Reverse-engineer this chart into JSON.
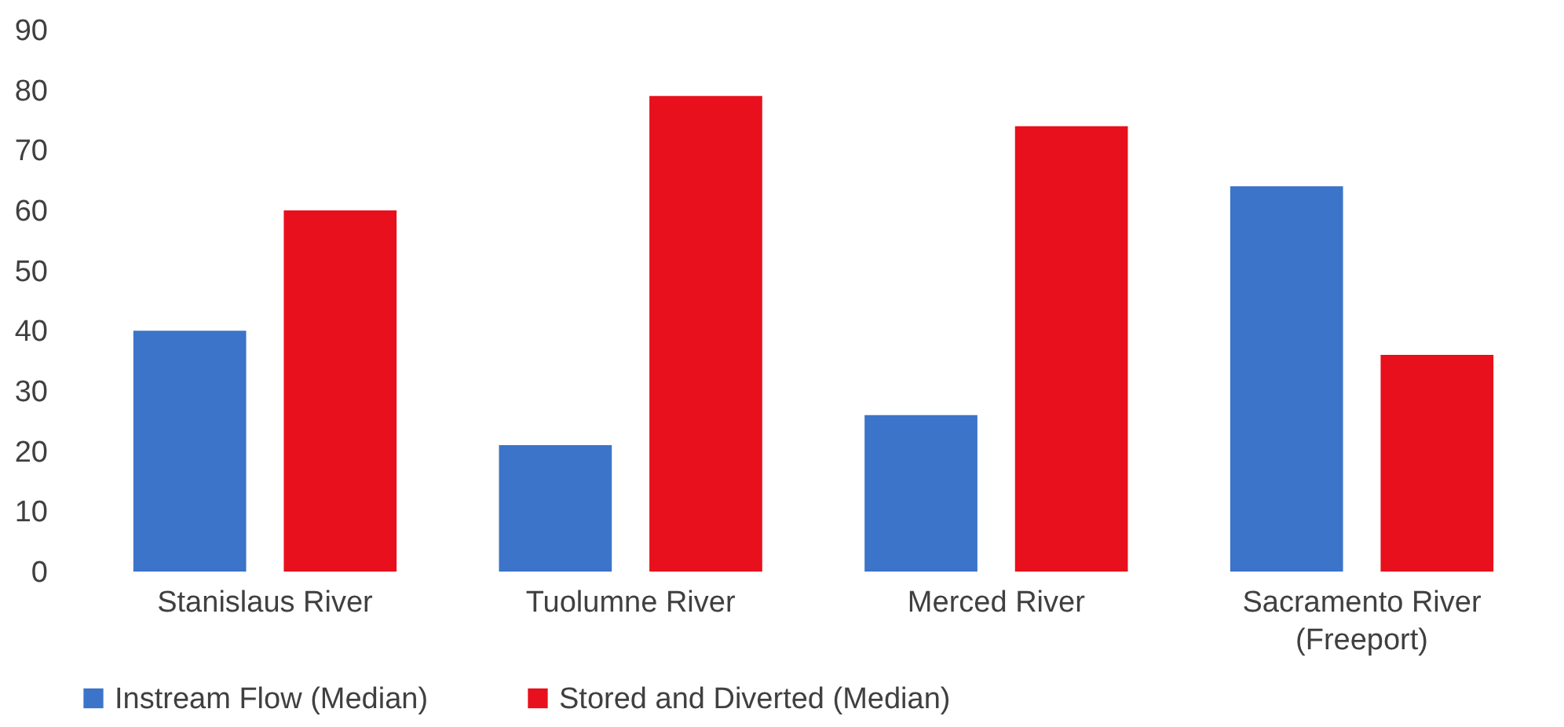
{
  "chart_data": {
    "type": "bar",
    "categories": [
      "Stanislaus River",
      "Tuolumne River",
      "Merced River",
      "Sacramento River\n(Freeport)"
    ],
    "series": [
      {
        "name": "Instream Flow (Median)",
        "color": "#3b74c8",
        "values": [
          40,
          21,
          26,
          64
        ]
      },
      {
        "name": "Stored and Diverted (Median)",
        "color": "#e8101c",
        "values": [
          60,
          79,
          74,
          36
        ]
      }
    ],
    "ylim": [
      0,
      90
    ],
    "yticks": [
      0,
      10,
      20,
      30,
      40,
      50,
      60,
      70,
      80,
      90
    ],
    "grid": false,
    "legend": "bottom"
  }
}
